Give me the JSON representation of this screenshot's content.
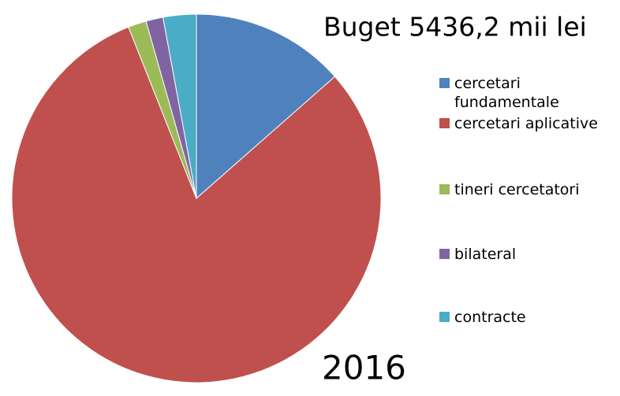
{
  "chart_data": {
    "type": "pie",
    "title": "Buget 5436,2 mii lei",
    "subtitle": "2016",
    "categories": [
      "cercetari fundamentale",
      "cercetari aplicative",
      "tineri cercetatori",
      "bilateral",
      "contracte"
    ],
    "values": [
      13.5,
      80.5,
      1.6,
      1.5,
      2.9
    ],
    "colors": [
      "#4f81bd",
      "#c0504d",
      "#9bbb59",
      "#8064a2",
      "#4bacc6"
    ],
    "legend": "right"
  }
}
